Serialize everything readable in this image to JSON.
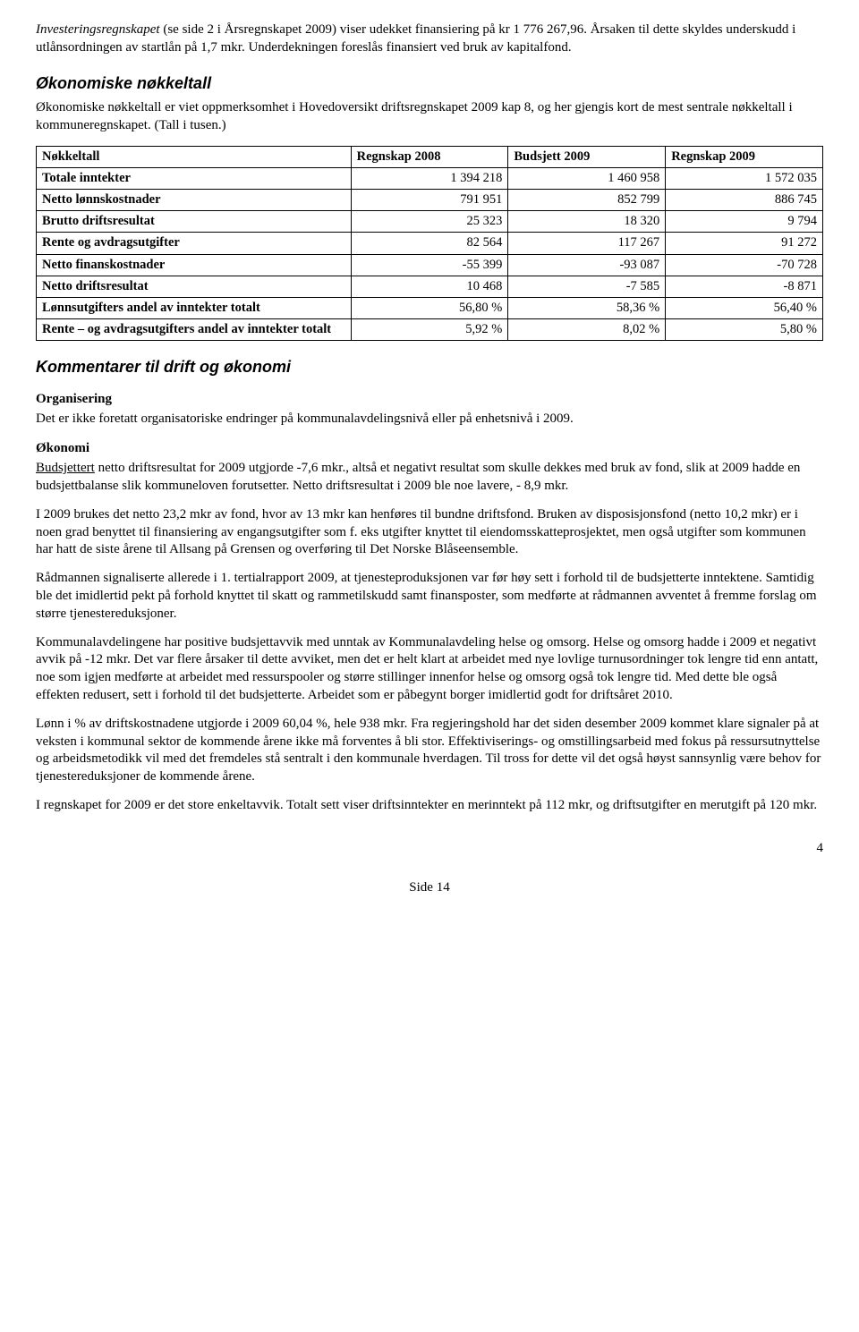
{
  "intro": {
    "p1_a": "Investeringsregnskapet",
    "p1_b": " (se side 2 i Årsregnskapet 2009) viser udekket finansiering på kr 1 776 267,96. Årsaken til dette skyldes underskudd i utlånsordningen av startlån på 1,7 mkr. Underdekningen foreslås finansiert ved bruk av kapitalfond."
  },
  "nokkeltall": {
    "heading": "Økonomiske nøkkeltall",
    "lead": "Økonomiske nøkkeltall er viet oppmerksomhet i Hovedoversikt driftsregnskapet 2009 kap 8, og her gjengis kort de mest sentrale nøkkeltall i kommuneregnskapet. (Tall i tusen.)",
    "columns": [
      "Nøkkeltall",
      "Regnskap 2008",
      "Budsjett 2009",
      "Regnskap 2009"
    ],
    "rows": [
      {
        "label": "Totale inntekter",
        "c1": "1 394 218",
        "c2": "1 460 958",
        "c3": "1 572 035"
      },
      {
        "label": "Netto lønnskostnader",
        "c1": "791 951",
        "c2": "852 799",
        "c3": "886 745"
      },
      {
        "label": "Brutto driftsresultat",
        "c1": "25 323",
        "c2": "18 320",
        "c3": "9 794"
      },
      {
        "label": "Rente og avdragsutgifter",
        "c1": "82 564",
        "c2": "117 267",
        "c3": "91 272"
      },
      {
        "label": "Netto finanskostnader",
        "c1": "-55 399",
        "c2": "-93 087",
        "c3": "-70 728"
      },
      {
        "label": "Netto driftsresultat",
        "c1": "10 468",
        "c2": "-7 585",
        "c3": "-8 871"
      },
      {
        "label": "Lønnsutgifters andel av inntekter totalt",
        "c1": "56,80 %",
        "c2": "58,36 %",
        "c3": "56,40 %"
      },
      {
        "label": "Rente – og avdragsutgifters andel av inntekter totalt",
        "c1": "5,92 %",
        "c2": "8,02 %",
        "c3": "5,80 %"
      }
    ],
    "col_widths": [
      "40%",
      "20%",
      "20%",
      "20%"
    ]
  },
  "kommentarer": {
    "heading": "Kommentarer til drift og økonomi",
    "org_label": "Organisering",
    "org_text": "Det er ikke foretatt organisatoriske endringer på kommunalavdelingsnivå eller på enhetsnivå i 2009.",
    "oko_label": "Økonomi",
    "p1_u": "Budsjettert",
    "p1_rest": " netto driftsresultat for 2009 utgjorde  -7,6 mkr., altså et negativt resultat som skulle dekkes med bruk av fond, slik at 2009 hadde en budsjettbalanse slik kommuneloven forutsetter.  Netto driftsresultat i 2009 ble noe lavere, - 8,9 mkr.",
    "p2": "I 2009 brukes det netto 23,2 mkr av fond, hvor av 13 mkr kan henføres til bundne driftsfond. Bruken av disposisjonsfond (netto 10,2 mkr) er i noen grad benyttet til finansiering av engangsutgifter som f. eks utgifter knyttet til eiendomsskatteprosjektet, men også utgifter som kommunen har hatt de siste årene til Allsang på Grensen og overføring til Det Norske Blåseensemble.",
    "p3": "Rådmannen signaliserte allerede i 1. tertialrapport 2009, at tjenesteproduksjonen var før høy sett i forhold til de budsjetterte inntektene. Samtidig ble det imidlertid pekt på forhold knyttet til skatt og rammetilskudd samt finansposter, som medførte at rådmannen avventet å fremme forslag om større tjenestereduksjoner.",
    "p4": "Kommunalavdelingene har positive budsjettavvik med unntak av Kommunalavdeling helse og omsorg. Helse og omsorg hadde i 2009 et negativt avvik på -12 mkr. Det var flere årsaker til dette avviket, men det er helt klart at arbeidet med nye lovlige turnusordninger tok lengre tid enn antatt, noe som igjen medførte at arbeidet med ressurspooler og større stillinger innenfor helse og omsorg også tok lengre tid. Med dette ble også effekten redusert, sett i forhold til det budsjetterte. Arbeidet som er påbegynt borger imidlertid godt for driftsåret 2010.",
    "p5": "Lønn i % av driftskostnadene utgjorde i 2009 60,04 %, hele 938 mkr. Fra regjeringshold har det siden desember 2009 kommet klare signaler på at veksten i kommunal sektor de kommende årene ikke må forventes å bli stor. Effektiviserings- og omstillingsarbeid med fokus på ressursutnyttelse og arbeidsmetodikk vil med det fremdeles stå sentralt i den kommunale hverdagen.  Til tross for dette vil det også høyst sannsynlig være behov for tjenestereduksjoner de kommende årene.",
    "p6": "I regnskapet for 2009 er det store enkeltavvik. Totalt sett viser driftsinntekter en merinntekt på 112 mkr, og driftsutgifter en merutgift på 120 mkr."
  },
  "footer": {
    "page_right": "4",
    "page_center": "Side 14"
  }
}
